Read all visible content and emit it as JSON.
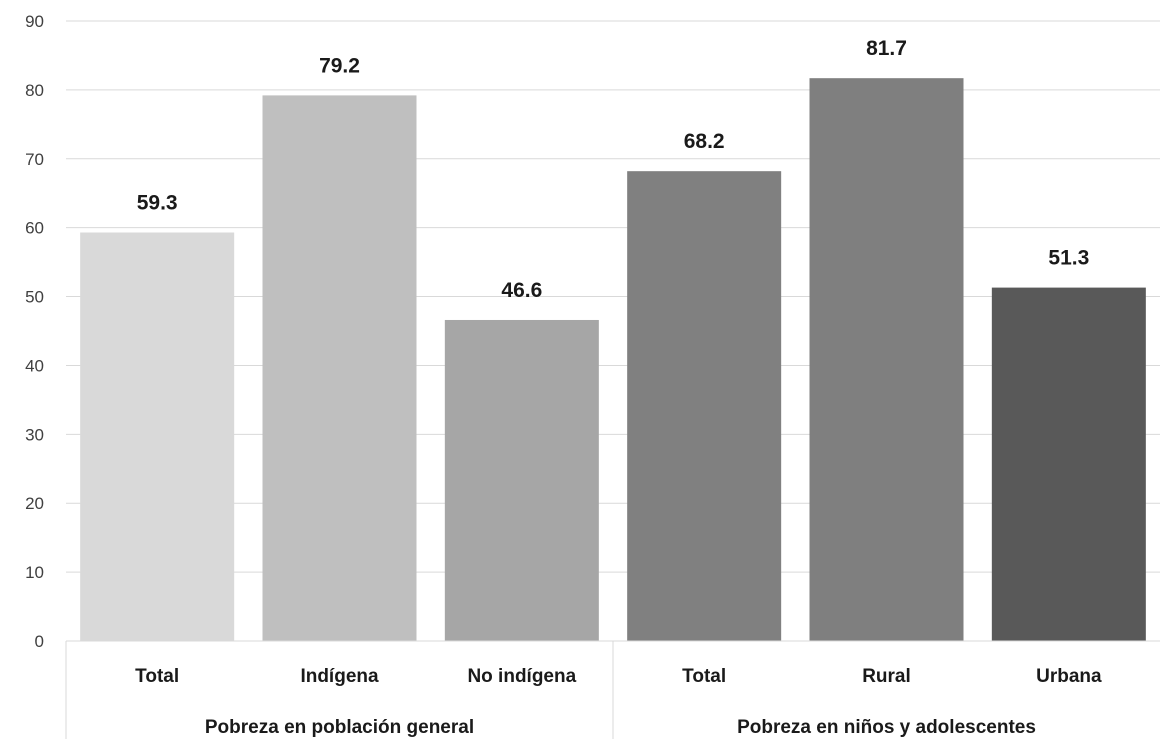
{
  "chart_data": {
    "type": "bar",
    "title": "",
    "xlabel": "",
    "ylabel": "",
    "ylim": [
      0,
      90
    ],
    "yticks": [
      0,
      10,
      20,
      30,
      40,
      50,
      60,
      70,
      80,
      90
    ],
    "grid": true,
    "categories": [
      "Total",
      "Indígena",
      "No indígena",
      "Total",
      "Rural",
      "Urbana"
    ],
    "values": [
      59.3,
      79.2,
      46.6,
      68.2,
      81.7,
      51.3
    ],
    "data_labels": [
      "59.3",
      "79.2",
      "46.6",
      "68.2",
      "81.7",
      "51.3"
    ],
    "colors": [
      "#d9d9d9",
      "#bfbfbf",
      "#a6a6a6",
      "#808080",
      "#7f7f7f",
      "#595959"
    ],
    "groups": [
      {
        "label": "Pobreza en población general",
        "categories": [
          0,
          1,
          2
        ]
      },
      {
        "label": "Pobreza en niños y adolescentes",
        "categories": [
          3,
          4,
          5
        ]
      }
    ]
  }
}
